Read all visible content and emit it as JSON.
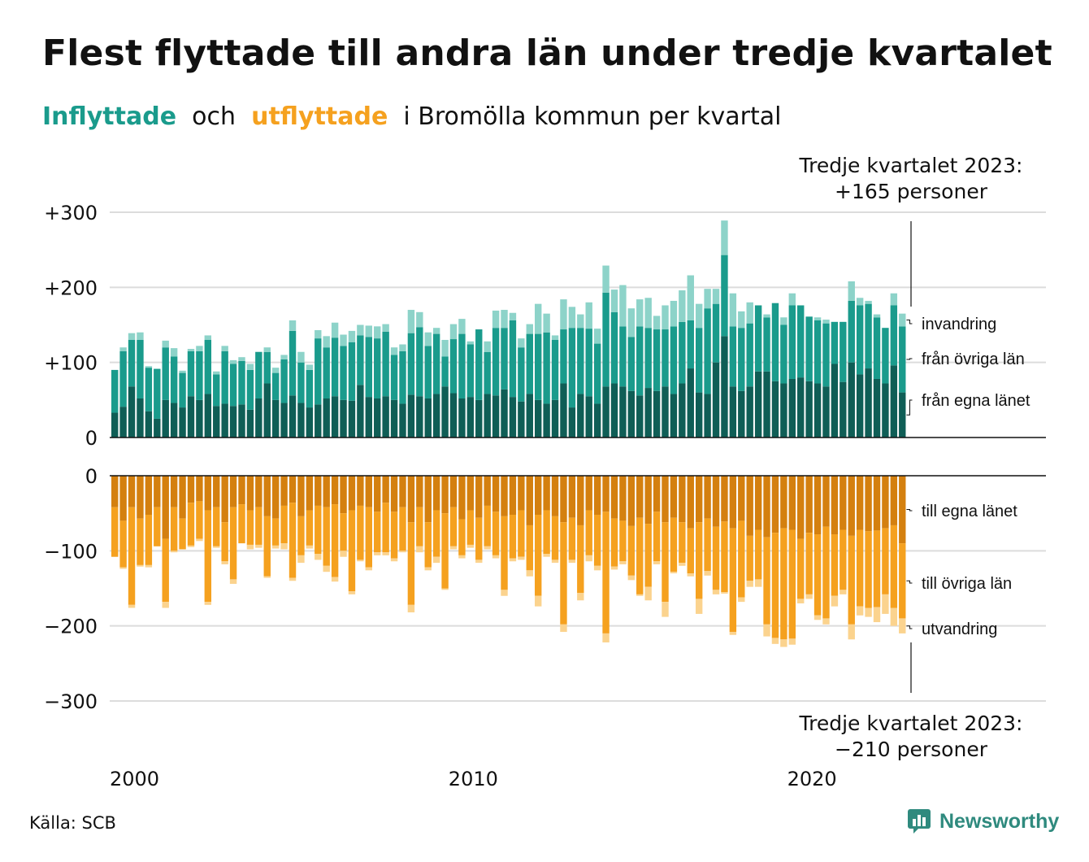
{
  "title": "Flest flyttade till andra län under tredje kvartalet",
  "subtitle": {
    "part1": "Inflyttade",
    "part2": "och",
    "part3": "utflyttade",
    "part4": "i Bromölla kommun per kvartal"
  },
  "annotations": {
    "top_line1": "Tredje kvartalet 2023:",
    "top_line2": "+165 personer",
    "bottom_line1": "Tredje kvartalet 2023:",
    "bottom_line2": "−210 personer"
  },
  "source": "Källa: SCB",
  "brand": "Newsworthy",
  "colors": {
    "in_own": "#0f5e56",
    "in_other": "#1a9b8c",
    "in_imm": "#8dd3c9",
    "out_own": "#d4800f",
    "out_other": "#f5a11f",
    "out_emi": "#fbd38e",
    "title_in": "#1a9b8c",
    "title_out": "#f5a11f",
    "brand": "#2f8a7e"
  },
  "chart_data": [
    {
      "type": "bar",
      "stacked": true,
      "title": "Inflyttade",
      "x_start": "2000-Q1",
      "x_end": "2023-Q3",
      "x_ticks": [
        "2000",
        "2010",
        "2020"
      ],
      "y_ticks": [
        "+300",
        "+200",
        "+100",
        "0"
      ],
      "ylim": [
        0,
        300
      ],
      "series": [
        {
          "name": "från egna länet",
          "values": [
            33,
            41,
            68,
            52,
            35,
            25,
            50,
            46,
            40,
            55,
            50,
            58,
            42,
            45,
            42,
            44,
            37,
            52,
            72,
            50,
            46,
            56,
            46,
            40,
            44,
            52,
            55,
            50,
            49,
            70,
            54,
            52,
            55,
            50,
            45,
            57,
            55,
            52,
            58,
            68,
            59,
            52,
            54,
            50,
            58,
            56,
            64,
            54,
            48,
            58,
            50,
            45,
            50,
            72,
            40,
            58,
            55,
            45,
            68,
            72,
            68,
            62,
            56,
            66,
            62,
            68,
            58,
            72,
            92,
            60,
            58,
            100,
            135,
            68,
            62,
            68,
            88,
            88,
            75,
            72,
            78,
            80,
            75,
            72,
            68,
            98,
            74,
            100,
            84,
            92,
            78,
            72,
            96,
            60
          ]
        },
        {
          "name": "från övriga län",
          "values": [
            57,
            74,
            62,
            78,
            58,
            66,
            70,
            62,
            46,
            60,
            65,
            72,
            42,
            70,
            56,
            58,
            53,
            62,
            42,
            36,
            58,
            86,
            54,
            50,
            88,
            68,
            78,
            72,
            78,
            66,
            80,
            80,
            86,
            60,
            70,
            82,
            92,
            70,
            80,
            40,
            72,
            86,
            70,
            94,
            56,
            90,
            82,
            102,
            72,
            80,
            88,
            95,
            80,
            72,
            106,
            88,
            90,
            80,
            125,
            95,
            80,
            72,
            92,
            80,
            82,
            76,
            90,
            82,
            64,
            86,
            114,
            78,
            108,
            80,
            84,
            84,
            88,
            72,
            104,
            78,
            98,
            96,
            86,
            84,
            84,
            56,
            80,
            82,
            92,
            86,
            82,
            74,
            80,
            88
          ]
        },
        {
          "name": "invandring",
          "values": [
            0,
            5,
            9,
            10,
            2,
            1,
            9,
            11,
            3,
            3,
            7,
            6,
            4,
            7,
            5,
            5,
            8,
            0,
            6,
            7,
            6,
            14,
            14,
            7,
            11,
            15,
            20,
            15,
            15,
            14,
            15,
            16,
            10,
            10,
            9,
            31,
            20,
            18,
            8,
            22,
            20,
            20,
            4,
            0,
            14,
            23,
            24,
            10,
            12,
            13,
            40,
            25,
            6,
            40,
            28,
            18,
            35,
            20,
            36,
            30,
            55,
            38,
            36,
            40,
            18,
            32,
            34,
            42,
            60,
            32,
            26,
            20,
            46,
            44,
            22,
            28,
            0,
            4,
            0,
            10,
            16,
            0,
            0,
            4,
            5,
            0,
            0,
            26,
            10,
            4,
            4,
            0,
            16,
            17
          ]
        }
      ]
    },
    {
      "type": "bar",
      "stacked": true,
      "title": "Utflyttade",
      "x_start": "2000-Q1",
      "x_end": "2023-Q3",
      "x_ticks": [
        "2000",
        "2010",
        "2020"
      ],
      "y_ticks": [
        "0",
        "−100",
        "−200",
        "−300"
      ],
      "ylim": [
        -300,
        0
      ],
      "series": [
        {
          "name": "till egna länet",
          "values": [
            -42,
            -60,
            -42,
            -57,
            -52,
            -42,
            -84,
            -42,
            -57,
            -36,
            -34,
            -46,
            -42,
            -62,
            -42,
            -38,
            -46,
            -42,
            -54,
            -57,
            -40,
            -36,
            -54,
            -46,
            -40,
            -42,
            -38,
            -50,
            -46,
            -40,
            -42,
            -48,
            -36,
            -48,
            -42,
            -62,
            -42,
            -62,
            -46,
            -50,
            -42,
            -58,
            -46,
            -56,
            -40,
            -48,
            -54,
            -52,
            -46,
            -66,
            -52,
            -46,
            -54,
            -62,
            -56,
            -66,
            -46,
            -52,
            -48,
            -57,
            -60,
            -67,
            -56,
            -64,
            -48,
            -62,
            -56,
            -62,
            -70,
            -62,
            -57,
            -68,
            -61,
            -70,
            -60,
            -80,
            -72,
            -82,
            -76,
            -70,
            -72,
            -84,
            -76,
            -78,
            -68,
            -78,
            -72,
            -80,
            -72,
            -74,
            -73,
            -70,
            -66,
            -90
          ]
        },
        {
          "name": "till övriga län",
          "values": [
            -66,
            -62,
            -130,
            -62,
            -67,
            -52,
            -84,
            -58,
            -41,
            -57,
            -50,
            -122,
            -52,
            -52,
            -96,
            -52,
            -46,
            -50,
            -80,
            -36,
            -50,
            -100,
            -52,
            -47,
            -64,
            -78,
            -97,
            -50,
            -108,
            -72,
            -80,
            -54,
            -66,
            -62,
            -58,
            -110,
            -52,
            -60,
            -62,
            -100,
            -52,
            -48,
            -46,
            -56,
            -54,
            -58,
            -98,
            -58,
            -62,
            -60,
            -108,
            -58,
            -58,
            -136,
            -56,
            -90,
            -60,
            -68,
            -162,
            -64,
            -54,
            -66,
            -102,
            -84,
            -66,
            -106,
            -72,
            -54,
            -60,
            -102,
            -70,
            -84,
            -94,
            -138,
            -102,
            -60,
            -66,
            -116,
            -140,
            -148,
            -145,
            -80,
            -82,
            -108,
            -122,
            -82,
            -80,
            -118,
            -102,
            -102,
            -102,
            -88,
            -110,
            -100
          ]
        },
        {
          "name": "utvandring",
          "values": [
            0,
            -2,
            -4,
            -2,
            -3,
            0,
            -8,
            -2,
            0,
            -2,
            -3,
            -4,
            -2,
            -4,
            -6,
            0,
            -6,
            -4,
            -2,
            -4,
            -8,
            -4,
            -10,
            -4,
            -8,
            -8,
            -6,
            -8,
            -4,
            -2,
            -4,
            -4,
            -4,
            -4,
            -2,
            -10,
            -8,
            -4,
            -8,
            -2,
            -4,
            -4,
            -4,
            -4,
            -4,
            -4,
            -8,
            -4,
            -4,
            -8,
            -14,
            -4,
            -4,
            -10,
            -4,
            -10,
            -8,
            -6,
            -12,
            -4,
            -4,
            -6,
            -2,
            -18,
            -4,
            -20,
            -2,
            -4,
            -4,
            -20,
            -6,
            -6,
            -2,
            -4,
            -6,
            -8,
            -10,
            -16,
            -8,
            -10,
            -8,
            -6,
            -6,
            -6,
            -8,
            -14,
            -6,
            -20,
            -12,
            -12,
            -20,
            -26,
            -24,
            -20
          ]
        }
      ]
    }
  ]
}
